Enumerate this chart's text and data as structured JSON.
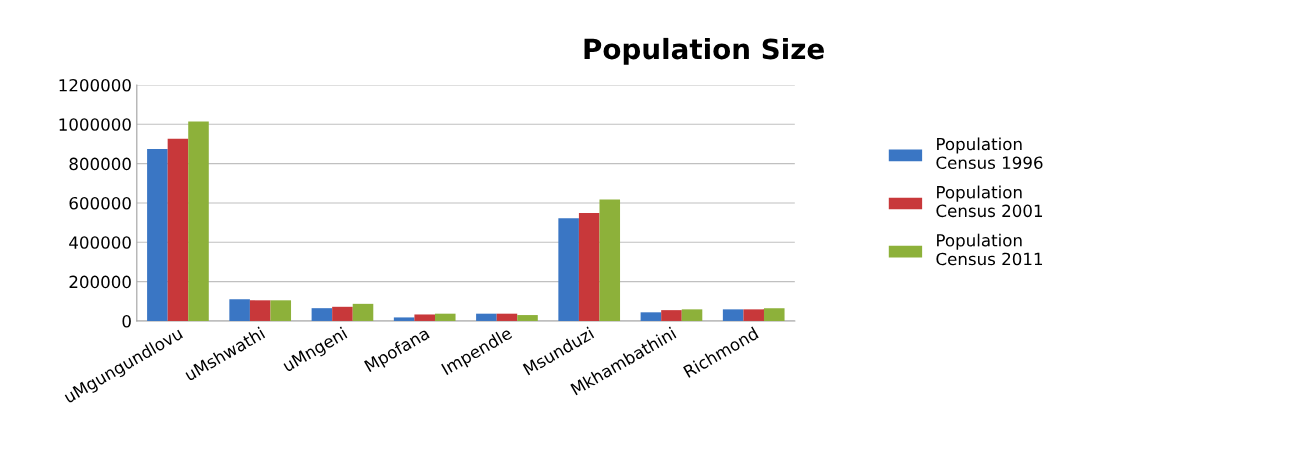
{
  "chart_data": {
    "type": "bar",
    "title": "Population Size",
    "categories": [
      "uMgungundlovu",
      "uMshwathi",
      "uMngeni",
      "Mpofana",
      "Impendle",
      "Msunduzi",
      "Mkhambathini",
      "Richmond"
    ],
    "series": [
      {
        "name": "Population Census 1996",
        "color": "#3a76c4",
        "values": [
          875000,
          110000,
          65000,
          18000,
          37000,
          522000,
          44000,
          59000
        ]
      },
      {
        "name": "Population Census 2001",
        "color": "#c8383a",
        "values": [
          927000,
          105000,
          72000,
          33000,
          37000,
          549000,
          55000,
          59000
        ]
      },
      {
        "name": "Population Census 2011",
        "color": "#8db13a",
        "values": [
          1014000,
          105000,
          87000,
          37000,
          30000,
          617000,
          59000,
          65000
        ]
      }
    ],
    "ylim": [
      0,
      1200000
    ],
    "yticks": [
      0,
      200000,
      400000,
      600000,
      800000,
      1000000,
      1200000
    ],
    "grid": "y",
    "legend": "right"
  }
}
